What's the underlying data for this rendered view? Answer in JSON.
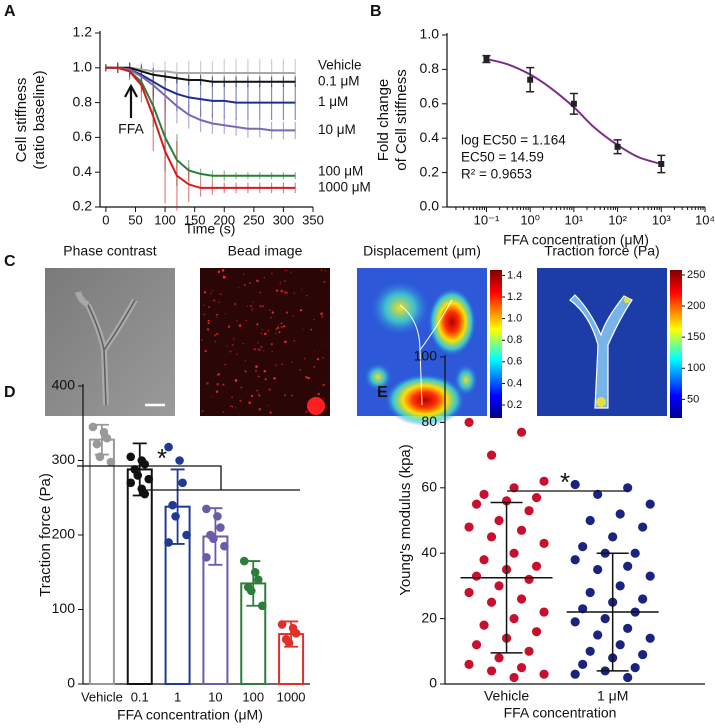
{
  "chart_data": [
    {
      "type": "line",
      "panel_label": "A",
      "ylabel": [
        "Cell stiffness",
        "(ratio baseline)"
      ],
      "xlabel": "Time (s)",
      "annotation": "FFA",
      "x": [
        0,
        20,
        40,
        60,
        80,
        100,
        120,
        140,
        160,
        180,
        200,
        220,
        240,
        260,
        280,
        300,
        320
      ],
      "xlim": [
        -10,
        350
      ],
      "xticks": [
        0,
        50,
        100,
        150,
        200,
        250,
        300,
        350
      ],
      "ylim": [
        0.2,
        1.2
      ],
      "yticks": [
        0.2,
        0.4,
        0.6,
        0.8,
        {
          "value": 1.0,
          "label": "1.0"
        },
        1.2
      ],
      "series": [
        {
          "name": "Vehicle",
          "color": "#a9a9a9",
          "values": [
            1.0,
            1.0,
            1.0,
            0.99,
            0.98,
            0.98,
            0.97,
            0.97,
            0.97,
            0.97,
            0.97,
            0.97,
            0.97,
            0.97,
            0.97,
            0.97,
            0.97
          ],
          "errors": [
            0.02,
            0.03,
            0.03,
            0.04,
            0.05,
            0.06,
            0.06,
            0.07,
            0.07,
            0.07,
            0.08,
            0.08,
            0.08,
            0.08,
            0.08,
            0.08,
            0.08
          ]
        },
        {
          "name": "0.1 μM",
          "color": "#111111",
          "values": [
            1.0,
            1.0,
            1.0,
            0.98,
            0.96,
            0.95,
            0.94,
            0.93,
            0.93,
            0.92,
            0.92,
            0.92,
            0.92,
            0.92,
            0.92,
            0.92,
            0.92
          ],
          "errors": [
            0.02,
            0.02,
            0.03,
            0.03,
            0.03,
            0.03,
            0.03,
            0.03,
            0.03,
            0.03,
            0.03,
            0.03,
            0.03,
            0.03,
            0.03,
            0.03,
            0.03
          ]
        },
        {
          "name": "1 μM",
          "color": "#1f2f8f",
          "values": [
            1.0,
            1.0,
            0.99,
            0.96,
            0.92,
            0.88,
            0.85,
            0.83,
            0.82,
            0.81,
            0.81,
            0.8,
            0.8,
            0.8,
            0.8,
            0.8,
            0.8
          ],
          "errors": [
            0.02,
            0.03,
            0.04,
            0.06,
            0.08,
            0.09,
            0.1,
            0.1,
            0.1,
            0.1,
            0.1,
            0.1,
            0.1,
            0.1,
            0.1,
            0.1,
            0.1
          ]
        },
        {
          "name": "10 μM",
          "color": "#7b68b5",
          "values": [
            1.0,
            1.0,
            0.99,
            0.95,
            0.9,
            0.84,
            0.78,
            0.73,
            0.7,
            0.68,
            0.67,
            0.66,
            0.65,
            0.65,
            0.64,
            0.64,
            0.64
          ],
          "errors": [
            0.02,
            0.03,
            0.04,
            0.06,
            0.08,
            0.09,
            0.1,
            0.08,
            0.07,
            0.06,
            0.05,
            0.05,
            0.05,
            0.05,
            0.05,
            0.05,
            0.05
          ]
        },
        {
          "name": "100 μM",
          "color": "#2e7d3c",
          "values": [
            1.0,
            1.0,
            0.98,
            0.92,
            0.78,
            0.6,
            0.47,
            0.41,
            0.39,
            0.38,
            0.38,
            0.38,
            0.38,
            0.38,
            0.38,
            0.38,
            0.38
          ],
          "errors": [
            0.02,
            0.03,
            0.04,
            0.06,
            0.12,
            0.2,
            0.15,
            0.06,
            0.03,
            0.03,
            0.03,
            0.02,
            0.02,
            0.02,
            0.02,
            0.02,
            0.02
          ]
        },
        {
          "name": "1000 μM",
          "color": "#d7191c",
          "values": [
            1.0,
            1.0,
            0.98,
            0.9,
            0.72,
            0.52,
            0.38,
            0.33,
            0.31,
            0.31,
            0.31,
            0.31,
            0.31,
            0.31,
            0.31,
            0.31,
            0.31
          ],
          "errors": [
            0.02,
            0.03,
            0.05,
            0.1,
            0.2,
            0.3,
            0.2,
            0.1,
            0.05,
            0.04,
            0.03,
            0.03,
            0.03,
            0.03,
            0.03,
            0.03,
            0.03
          ]
        }
      ]
    },
    {
      "type": "scatter",
      "panel_label": "B",
      "ylabel": [
        "Fold change",
        "of Cell stiffness"
      ],
      "xlabel": "FFA  concentration (μM)",
      "log_x": true,
      "annotations": [
        "log EC50 = 1.164",
        "EC50 = 14.59",
        "R² = 0.9653"
      ],
      "x": [
        0.1,
        1,
        10,
        100,
        1000
      ],
      "values": [
        0.86,
        0.74,
        0.6,
        0.35,
        0.25
      ],
      "errors": [
        0.02,
        0.07,
        0.06,
        0.04,
        0.05
      ],
      "color": "#222222",
      "fit": {
        "color": "#7b2d8e",
        "x": [
          0.1,
          0.3,
          1,
          3,
          10,
          30,
          100,
          300,
          1000
        ],
        "y": [
          0.86,
          0.83,
          0.77,
          0.69,
          0.58,
          0.46,
          0.36,
          0.29,
          0.25
        ]
      },
      "xlim": [
        0.0125,
        10000
      ],
      "xticks": [
        {
          "value": 0.1,
          "label": "10⁻¹"
        },
        {
          "value": 1,
          "label": "10⁰"
        },
        {
          "value": 10,
          "label": "10¹"
        },
        {
          "value": 100,
          "label": "10²"
        },
        {
          "value": 1000,
          "label": "10³"
        },
        {
          "value": 10000,
          "label": "10⁴"
        }
      ],
      "ylim": [
        0,
        1
      ],
      "yticks": [
        {
          "value": 0,
          "label": "0.0"
        },
        0.2,
        0.4,
        0.6,
        0.8,
        {
          "value": 1.0,
          "label": "1.0"
        }
      ]
    },
    {
      "type": "bar",
      "panel_label": "D",
      "ylabel": [
        "Traction force (Pa)"
      ],
      "xlabel": "FFA  concentration (μM)",
      "significance": "*",
      "categories": [
        "Vehicle",
        "0.1",
        "1",
        "10",
        "100",
        "1000"
      ],
      "colors": [
        "#999999",
        "#111111",
        "#1f3a93",
        "#6b5ba8",
        "#2e7d3c",
        "#e0302a"
      ],
      "values": [
        328,
        288,
        238,
        198,
        135,
        67
      ],
      "errors": [
        20,
        35,
        50,
        38,
        30,
        17
      ],
      "points": [
        [
          345,
          338,
          330,
          322,
          305,
          298
        ],
        [
          305,
          300,
          295,
          288,
          280,
          275,
          270,
          262,
          255
        ],
        [
          318,
          300,
          270,
          240,
          225,
          200,
          190
        ],
        [
          235,
          225,
          210,
          200,
          195,
          185,
          170
        ],
        [
          165,
          150,
          140,
          130,
          125,
          105
        ],
        [
          80,
          75,
          68,
          60,
          55
        ]
      ],
      "ylim": [
        0,
        400
      ],
      "yticks": [
        0,
        100,
        200,
        300,
        400
      ]
    },
    {
      "type": "dot",
      "panel_label": "E",
      "ylabel": [
        "Young's modulus (kpa)"
      ],
      "xlabel": "FFA  concentration",
      "significance": "*",
      "categories": [
        "Vehicle",
        "1 μM"
      ],
      "colors": [
        "#c8102e",
        "#1a237e"
      ],
      "means": [
        32.5,
        22
      ],
      "sd": [
        23,
        18
      ],
      "points": [
        [
          80,
          77,
          70,
          62,
          60,
          58,
          57,
          56,
          55,
          53,
          50,
          48,
          47,
          45,
          43,
          40,
          38,
          36,
          35,
          33,
          32,
          30,
          28,
          26,
          25,
          22,
          20,
          18,
          16,
          14,
          12,
          10,
          8,
          6,
          5,
          4,
          3,
          2
        ],
        [
          61,
          60,
          58,
          55,
          52,
          50,
          48,
          45,
          42,
          40,
          40,
          38,
          36,
          35,
          33,
          30,
          28,
          26,
          25,
          23,
          22,
          20,
          19,
          17,
          15,
          14,
          12,
          10,
          9,
          8,
          6,
          5,
          4,
          3,
          2
        ]
      ],
      "ylim": [
        0,
        100
      ],
      "yticks": [
        0,
        20,
        40,
        60,
        80,
        100
      ]
    }
  ],
  "panel_c": {
    "panel_label": "C",
    "images": [
      {
        "title": "Phase contrast"
      },
      {
        "title": "Bead image"
      },
      {
        "title": "Displacement (μm)",
        "colorbar": {
          "lim": [
            0.08,
            1.45
          ],
          "ticks": [
            0.2,
            0.4,
            0.6,
            0.8,
            {
              "value": 1.0,
              "label": "1.0"
            },
            1.2,
            1.4
          ]
        }
      },
      {
        "title": "Traction force (Pa)",
        "colorbar": {
          "lim": [
            20,
            258
          ],
          "ticks": [
            50,
            100,
            150,
            200,
            250
          ]
        }
      }
    ]
  }
}
